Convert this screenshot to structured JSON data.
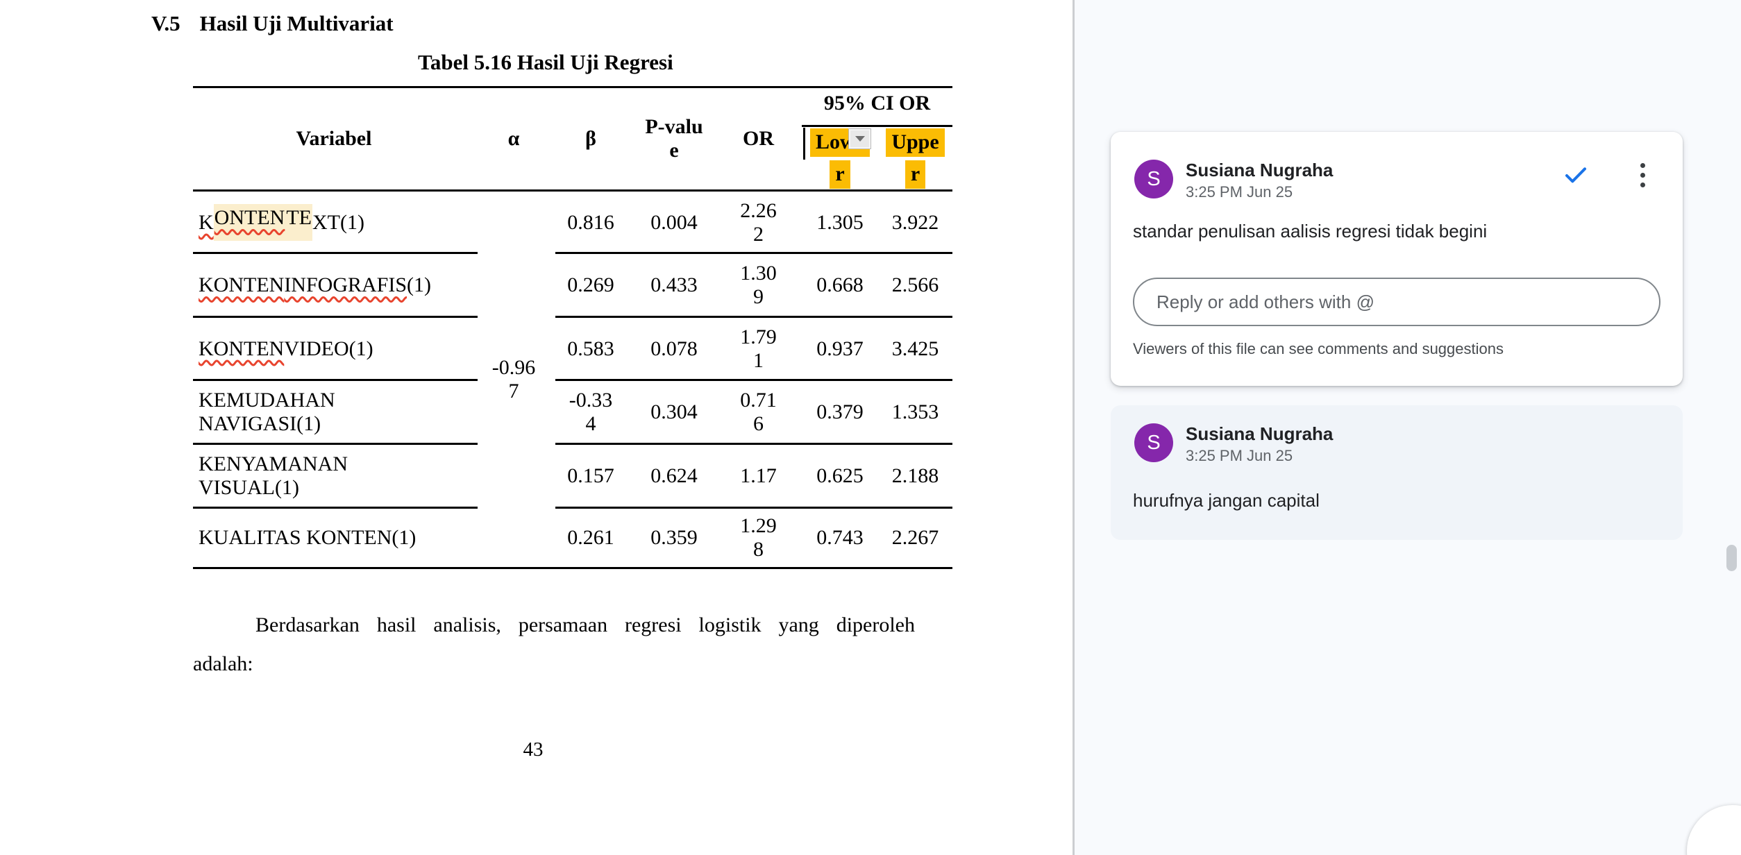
{
  "document": {
    "section_number": "V.5",
    "section_title": "Hasil Uji Multivariat",
    "table_caption": "Tabel 5.16 Hasil Uji Regresi",
    "table": {
      "group_header": "95% CI OR",
      "headers": {
        "variable": "Variabel",
        "alpha": "α",
        "beta": "β",
        "pvalue": "P-valu\ne",
        "or": "OR",
        "lower": "Lowe\nr",
        "upper": "Uppe\nr"
      },
      "alpha_shared_value": "-0.96\n7",
      "rows": [
        {
          "variable": [
            {
              "t": "K",
              "wavy": true
            },
            {
              "t": "ONTEN",
              "wavy": true,
              "hl": true
            },
            {
              "t": " TE",
              "hl": true
            },
            {
              "t": "XT(1)"
            }
          ],
          "beta": "0.816",
          "pvalue": "0.004",
          "or": "2.26\n2",
          "lower": "1.305",
          "upper": "3.922"
        },
        {
          "variable": [
            {
              "t": "KONTEN",
              "wavy": true
            },
            {
              "t": " "
            },
            {
              "t": "INFOGRAFIS",
              "wavy": true
            },
            {
              "t": "(1)"
            }
          ],
          "beta": "0.269",
          "pvalue": "0.433",
          "or": "1.30\n9",
          "lower": "0.668",
          "upper": "2.566"
        },
        {
          "variable": [
            {
              "t": "KONTEN",
              "wavy": true
            },
            {
              "t": " VIDEO(1)"
            }
          ],
          "beta": "0.583",
          "pvalue": "0.078",
          "or": "1.79\n1",
          "lower": "0.937",
          "upper": "3.425"
        },
        {
          "variable": [
            {
              "t": "KEMUDAHAN\nNAVIGASI(1)"
            }
          ],
          "beta": "-0.33\n4",
          "pvalue": "0.304",
          "or": "0.71\n6",
          "lower": "0.379",
          "upper": "1.353"
        },
        {
          "variable": [
            {
              "t": "KENYAMANAN\nVISUAL(1)"
            }
          ],
          "beta": "0.157",
          "pvalue": "0.624",
          "or": "1.17",
          "lower": "0.625",
          "upper": "2.188"
        },
        {
          "variable": [
            {
              "t": "KUALITAS KONTEN(1)"
            }
          ],
          "beta": "0.261",
          "pvalue": "0.359",
          "or": "1.29\n8",
          "lower": "0.743",
          "upper": "2.267"
        }
      ]
    },
    "body_line1": "Berdasarkan hasil analisis, persamaan regresi logistik yang diperoleh",
    "body_line2": "adalah:",
    "page_number": "43"
  },
  "comments": {
    "active_card": {
      "initial": "S",
      "author": "Susiana Nugraha",
      "time": "3:25 PM Jun 25",
      "body": "standar penulisan aalisis regresi tidak begini",
      "reply_placeholder": "Reply or add others with @",
      "visibility_note": "Viewers of this file can see comments and suggestions"
    },
    "resolved_card": {
      "initial": "S",
      "author": "Susiana Nugraha",
      "time": "3:25 PM Jun 25",
      "body": "hurufnya jangan capital"
    }
  },
  "icons": {
    "resolve": "check",
    "options": "more-vert",
    "column_menu": "caret-down"
  },
  "colors": {
    "accent_blue": "#1a73e8",
    "avatar_purple": "#8527ab",
    "active_anchor_highlight": "#fbbc04",
    "comment_anchor_highlight": "#fbeecd",
    "spellcheck_red": "#e8442e",
    "panel_bg": "#f8fafd",
    "resolved_card_bg": "#f0f4f9"
  }
}
